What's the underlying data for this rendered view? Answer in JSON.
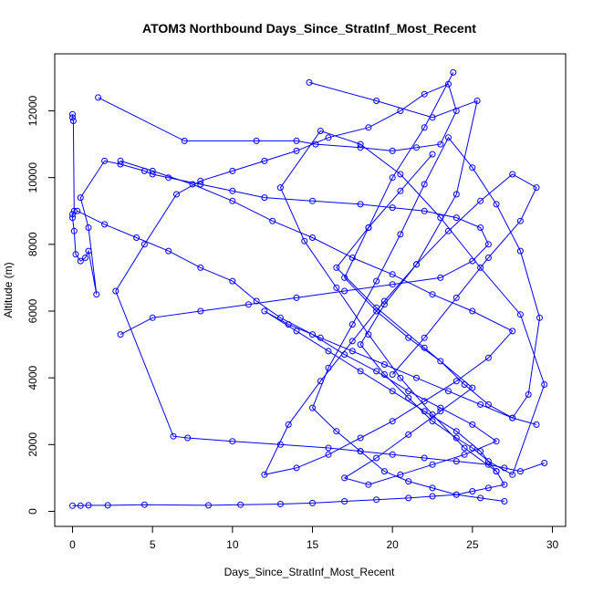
{
  "chart_data": {
    "type": "line",
    "title": "ATOM3 Northbound Days_Since_StratInf_Most_Recent",
    "xlabel": "Days_Since_StratInf_Most_Recent",
    "ylabel": "Altitude (m)",
    "xlim": [
      0,
      30
    ],
    "ylim": [
      0,
      13000
    ],
    "xticks": [
      0,
      5,
      10,
      15,
      20,
      25,
      30
    ],
    "yticks": [
      0,
      2000,
      4000,
      6000,
      8000,
      10000,
      12000
    ],
    "grid": false,
    "legend": "none",
    "color": "#0000ff",
    "marker": "open-circle",
    "series": [
      {
        "x": [
          0.0,
          0.0,
          0.05,
          0.1,
          0.0,
          0.0,
          0.1,
          0.2,
          0.5,
          0.8,
          1.0,
          1.5,
          1.0,
          0.5,
          2.0,
          3.0,
          4.5,
          5.0,
          6.0,
          8.0,
          10.0,
          12.0,
          15.0,
          18.0,
          20.0,
          22.0,
          24.0,
          25.5,
          26.0,
          25.0,
          23.0,
          20.0,
          17.0,
          14.0,
          11.0,
          8.0,
          5.0,
          3.0
        ],
        "y": [
          11900,
          11800,
          11700,
          9000,
          8900,
          8800,
          8400,
          7700,
          7500,
          7600,
          7800,
          6500,
          8500,
          9400,
          10500,
          10400,
          10200,
          10100,
          10000,
          9800,
          9600,
          9400,
          9300,
          9200,
          9100,
          9000,
          8800,
          8500,
          8000,
          7500,
          7000,
          6800,
          6600,
          6400,
          6200,
          6000,
          5800,
          5300
        ]
      },
      {
        "x": [
          1.6,
          7.0,
          11.5,
          14.0,
          15.2,
          18.0,
          20.0,
          21.5,
          23.0,
          24.0,
          23.5,
          22.0,
          20.5,
          18.5,
          16.0,
          14.0,
          12.0,
          10.0,
          8.0,
          6.5,
          4.5,
          2.7,
          6.3,
          7.2,
          10.0,
          13.0,
          16.0,
          18.0,
          20.0,
          22.0,
          24.0,
          26.0,
          27.0,
          28.0,
          29.5
        ],
        "y": [
          12400,
          11100,
          11100,
          11100,
          11000,
          10900,
          10800,
          10900,
          11000,
          12000,
          12800,
          12500,
          12000,
          11500,
          11200,
          10800,
          10500,
          10200,
          9900,
          9500,
          8000,
          6600,
          2250,
          2200,
          2100,
          2000,
          1900,
          1800,
          1700,
          1600,
          1500,
          1400,
          1300,
          1200,
          1450
        ]
      },
      {
        "x": [
          0.0,
          0.5,
          1.0,
          2.2,
          4.5,
          8.5,
          10.5,
          13.0,
          15.0,
          17.0,
          19.0,
          21.0,
          22.5,
          24.0,
          25.0,
          26.0,
          27.0,
          26.5,
          25.5,
          24.0,
          22.0,
          20.0,
          18.0,
          16.0,
          14.0,
          12.0,
          13.5,
          15.5,
          17.5,
          19.5,
          21.5,
          23.5,
          25.5,
          27.5,
          29.0
        ],
        "y": [
          170,
          170,
          180,
          180,
          200,
          180,
          200,
          220,
          250,
          300,
          350,
          400,
          450,
          500,
          600,
          700,
          800,
          1200,
          1800,
          2400,
          3000,
          3600,
          4200,
          4800,
          5400,
          6000,
          5600,
          5200,
          4800,
          4400,
          4000,
          3600,
          3200,
          2800,
          2600
        ]
      },
      {
        "x": [
          23.8,
          22.0,
          20.0,
          18.5,
          17.0,
          19.0,
          21.0,
          23.0,
          24.5,
          26.0,
          27.5,
          28.5,
          29.2,
          28.0,
          26.5,
          25.0,
          23.5,
          22.0,
          20.5,
          19.0,
          17.5,
          16.0,
          15.0,
          16.5,
          18.0,
          19.5,
          21.0,
          22.5,
          24.0,
          25.5,
          27.0
        ],
        "y": [
          13150,
          11500,
          10000,
          8500,
          7000,
          6000,
          5200,
          4500,
          3800,
          3200,
          2800,
          3500,
          5800,
          7800,
          9200,
          10300,
          11200,
          9800,
          8300,
          6900,
          5600,
          4300,
          3100,
          2400,
          1800,
          1200,
          900,
          700,
          500,
          400,
          300
        ]
      },
      {
        "x": [
          14.8,
          19.0,
          22.5,
          25.3,
          24.0,
          21.5,
          19.5,
          18.0,
          19.5,
          21.0,
          22.5,
          24.0,
          25.0,
          26.0,
          27.5,
          29.5,
          28.0,
          25.5,
          23.0,
          20.5,
          18.0,
          15.5,
          13.0,
          14.5,
          16.5,
          18.5,
          20.5,
          22.5,
          24.5,
          26.5
        ],
        "y": [
          12850,
          12300,
          11800,
          12300,
          9500,
          7400,
          6200,
          5000,
          4100,
          3400,
          2700,
          2200,
          1900,
          1500,
          1100,
          3800,
          5900,
          7300,
          8800,
          10100,
          11000,
          11400,
          9700,
          8100,
          6700,
          5300,
          4000,
          2900,
          1900,
          1200
        ]
      },
      {
        "x": [
          3.0,
          5.0,
          7.5,
          10.0,
          12.5,
          15.0,
          17.5,
          20.0,
          22.5,
          25.0,
          27.5,
          26.0,
          24.0,
          22.0,
          20.0,
          18.0,
          16.0,
          14.0,
          12.0,
          13.5,
          15.5,
          17.5,
          19.5,
          21.5,
          23.5,
          25.5,
          27.5,
          29.0,
          28.0,
          26.0,
          24.0,
          22.0,
          20.0
        ],
        "y": [
          10500,
          10200,
          9800,
          9300,
          8700,
          8200,
          7600,
          7100,
          6500,
          6000,
          5400,
          4600,
          3900,
          3300,
          2700,
          2200,
          1700,
          1300,
          1100,
          2600,
          3900,
          5100,
          6300,
          7400,
          8400,
          9300,
          10100,
          9700,
          8700,
          7600,
          6400,
          5200,
          4100
        ]
      },
      {
        "x": [
          0.3,
          2.0,
          4.0,
          6.0,
          8.0,
          10.0,
          11.5,
          13.0,
          15.0,
          17.0,
          19.0,
          21.0,
          23.0,
          25.0,
          26.5,
          24.5,
          22.5,
          20.5,
          18.5,
          17.0,
          19.0,
          21.0,
          23.0,
          25.0,
          22.0,
          19.0,
          16.5,
          18.5,
          20.5,
          22.5
        ],
        "y": [
          9000,
          8600,
          8200,
          7800,
          7300,
          6900,
          6300,
          5800,
          5300,
          4700,
          4200,
          3600,
          3100,
          2600,
          2100,
          1700,
          1400,
          1100,
          800,
          1000,
          1600,
          2300,
          3000,
          3700,
          4900,
          6100,
          7300,
          8500,
          9600,
          10700
        ]
      }
    ]
  }
}
